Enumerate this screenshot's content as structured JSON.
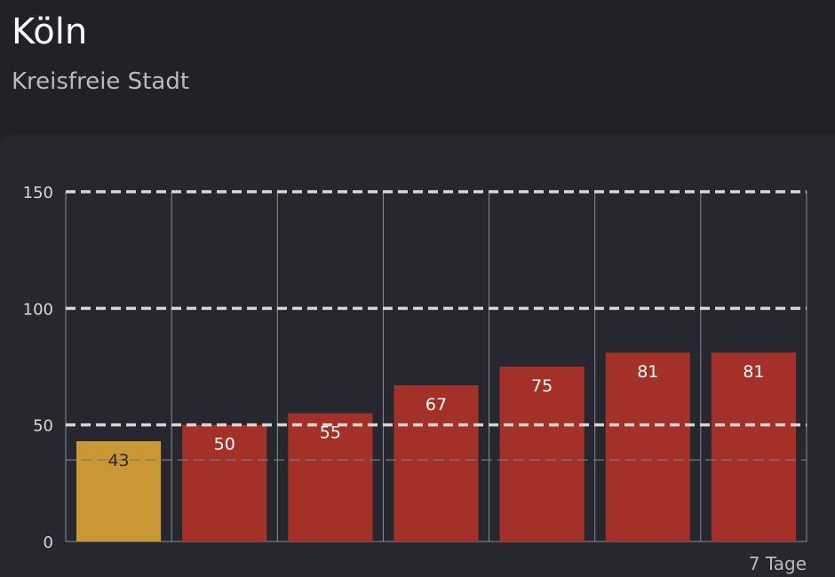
{
  "header": {
    "title": "Köln",
    "subtitle": "Kreisfreie Stadt"
  },
  "chart_data": {
    "type": "bar",
    "categories": [
      "",
      "",
      "",
      "",
      "",
      "",
      ""
    ],
    "values": [
      43,
      50,
      55,
      67,
      75,
      81,
      81
    ],
    "value_labels": [
      "43",
      "50",
      "55",
      "67",
      "75",
      "81",
      "81"
    ],
    "colors": [
      "#c99733",
      "#a33127",
      "#a33127",
      "#a33127",
      "#a33127",
      "#a33127",
      "#a33127"
    ],
    "highlight_color": "#c99733",
    "bar_color": "#a33127",
    "yticks": [
      0,
      50,
      100,
      150
    ],
    "ytick_labels": [
      "0",
      "50",
      "100",
      "150"
    ],
    "ylim": [
      0,
      150
    ],
    "threshold_lines": [
      50,
      100,
      150
    ],
    "reference_line": 35,
    "period_label": "7 Tage",
    "grid": true,
    "title": "",
    "xlabel": "",
    "ylabel": ""
  }
}
